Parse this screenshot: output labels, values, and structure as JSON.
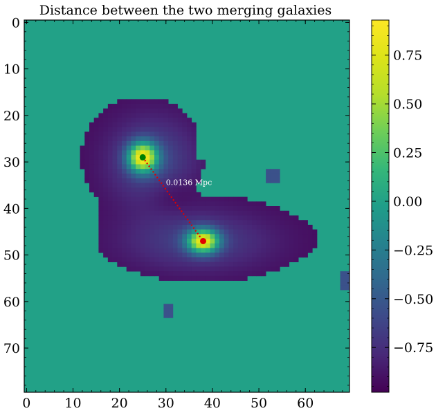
{
  "chart_data": {
    "type": "heatmap",
    "title": "Distance between the two merging galaxies",
    "xlabel": "",
    "ylabel": "",
    "x_range": [
      0,
      70
    ],
    "y_range": [
      0,
      80
    ],
    "y_inverted": true,
    "x_ticks": [
      "0",
      "10",
      "20",
      "30",
      "40",
      "50",
      "60"
    ],
    "y_ticks": [
      "0",
      "10",
      "20",
      "30",
      "40",
      "50",
      "60",
      "70"
    ],
    "colormap": "viridis",
    "background_value": 0.0,
    "color_range": [
      -0.98,
      0.93
    ],
    "colorbar_ticks": [
      "0.75",
      "0.50",
      "0.25",
      "0.00",
      "−0.25",
      "−0.50",
      "−0.75"
    ],
    "colorbar_tick_values": [
      0.75,
      0.5,
      0.25,
      0.0,
      -0.25,
      -0.5,
      -0.75
    ],
    "grid": false,
    "points": [
      {
        "x": 25,
        "y": 29,
        "color": "#008000"
      },
      {
        "x": 38,
        "y": 47,
        "color": "#e00000"
      }
    ],
    "connector": {
      "style": "dotted",
      "color": "#e00000"
    },
    "annotation": {
      "text": "0.0136 Mpc",
      "x": 30,
      "y": 35
    }
  }
}
